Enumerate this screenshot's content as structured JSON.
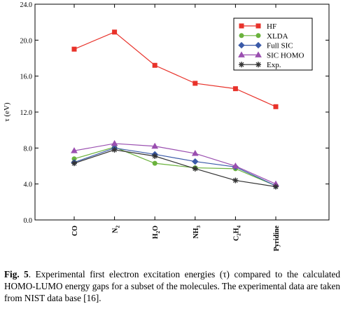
{
  "chart_data": {
    "type": "line",
    "categories": [
      "CO",
      "N2",
      "H2O",
      "NH3",
      "C2H4",
      "Pyridine"
    ],
    "category_labels": [
      {
        "base": "CO",
        "sub": ""
      },
      {
        "base": "N",
        "sub": "2"
      },
      {
        "base": "H",
        "sub": "2",
        "rest": "O"
      },
      {
        "base": "NH",
        "sub": "3"
      },
      {
        "base": "C",
        "sub": "2",
        "rest": "H",
        "sub2": "4"
      },
      {
        "base": "Pyridine",
        "sub": ""
      }
    ],
    "ylabel": "τ (eV)",
    "ylim": [
      0.0,
      24.0
    ],
    "yticks": [
      "0.0",
      "4.0",
      "8.0",
      "12.0",
      "16.0",
      "20.0",
      "24.0"
    ],
    "legend_position": "top-right",
    "grid": false,
    "series": [
      {
        "name": "HF",
        "color": "#e8322a",
        "marker": "square",
        "values": [
          19.0,
          20.9,
          17.2,
          15.2,
          14.6,
          12.6
        ]
      },
      {
        "name": "XLDA",
        "color": "#6ab23c",
        "marker": "circle",
        "values": [
          6.8,
          8.1,
          6.3,
          5.8,
          5.7,
          3.8
        ]
      },
      {
        "name": "Full SIC",
        "color": "#3a5aa8",
        "marker": "diamond",
        "values": [
          6.4,
          8.0,
          7.3,
          6.5,
          5.9,
          3.8
        ]
      },
      {
        "name": "SIC HOMO",
        "color": "#9a4fb0",
        "marker": "triangle",
        "values": [
          7.7,
          8.5,
          8.2,
          7.4,
          6.0,
          4.0
        ]
      },
      {
        "name": "Exp.",
        "color": "#333333",
        "marker": "star",
        "values": [
          6.3,
          7.8,
          7.1,
          5.7,
          4.4,
          3.7
        ]
      }
    ]
  },
  "caption": {
    "label": "Fig. 5",
    "text": ". Experimental first electron excitation energies (τ) compared to the calculated HOMO-LUMO energy gaps for a subset of the molecules. The experimental data are taken from NIST data base [16]."
  }
}
